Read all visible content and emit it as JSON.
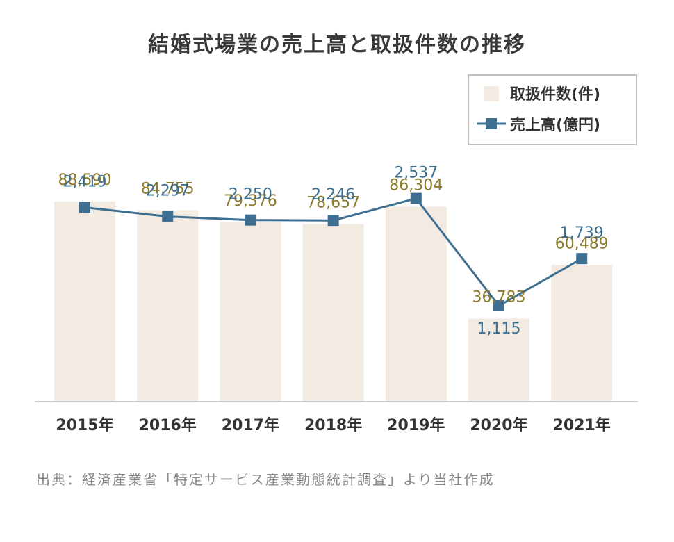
{
  "chart_data": {
    "type": "bar",
    "title": "結婚式場業の売上高と取扱件数の推移",
    "categories": [
      "2015年",
      "2016年",
      "2017年",
      "2018年",
      "2019年",
      "2020年",
      "2021年"
    ],
    "series": [
      {
        "name": "取扱件数(件)",
        "type": "bar",
        "values": [
          88590,
          84755,
          79376,
          78657,
          86304,
          36783,
          60489
        ],
        "labels": [
          "88,590",
          "84,755",
          "79,376",
          "78,657",
          "86,304",
          "36,783",
          "60,489"
        ]
      },
      {
        "name": "売上高(億円)",
        "type": "line",
        "values": [
          2419,
          2297,
          2250,
          2246,
          2537,
          1115,
          1739
        ],
        "labels": [
          "2,419",
          "2,297",
          "2,250",
          "2,246",
          "2,537",
          "1,115",
          "1,739"
        ]
      }
    ],
    "ylim_bar": [
      0,
      100000
    ],
    "ylim_line": [
      -1000,
      2800
    ],
    "legend_position": "top-right",
    "grid": false,
    "colors": {
      "bar": "#f3ebe2",
      "line": "#3e6f91",
      "bar_label": "#8b7a2a",
      "line_label": "#3e6f91"
    }
  },
  "source": "出典：経済産業省「特定サービス産業動態統計調査」より当社作成"
}
